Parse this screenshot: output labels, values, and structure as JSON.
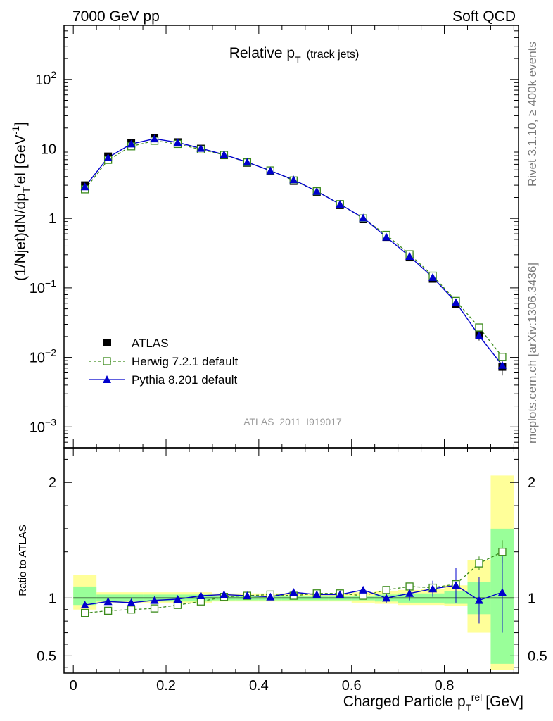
{
  "header": {
    "left": "7000 GeV pp",
    "right": "Soft QCD",
    "side_top": "Rivet 3.1.10, ≥ 400k events",
    "side_bottom": "mcplots.cern.ch [arXiv:1306.3436]",
    "watermark": "ATLAS_2011_I919017"
  },
  "colors": {
    "data": "#000000",
    "herwig": "#3a8a1a",
    "pythia": "#0000cc",
    "band_inner": "#99ff99",
    "band_outer": "#ffff99"
  },
  "chart_data": [
    {
      "type": "scatter",
      "title": "Relative p_T (track jets)",
      "title_main": "Relative p",
      "title_sub": "T",
      "title_suffix": "(track jets)",
      "xlabel": "",
      "ylabel": "(1/Njet)dN/dp_T^rel [GeV^-1]",
      "yscale": "log",
      "xlim": [
        -0.02,
        0.96
      ],
      "ylim": [
        0.0005,
        600
      ],
      "ytick_values": [
        0.001,
        0.01,
        0.1,
        1,
        10,
        100
      ],
      "ytick_labels": [
        {
          "base": "10",
          "exp": "−3"
        },
        {
          "base": "10",
          "exp": "−2"
        },
        {
          "base": "10",
          "exp": "−1"
        },
        {
          "base": "1",
          "exp": ""
        },
        {
          "base": "10",
          "exp": ""
        },
        {
          "base": "10",
          "exp": "2"
        }
      ],
      "legend_position": "lower-left",
      "x": [
        0.025,
        0.075,
        0.125,
        0.175,
        0.225,
        0.275,
        0.325,
        0.375,
        0.425,
        0.475,
        0.525,
        0.575,
        0.625,
        0.675,
        0.725,
        0.775,
        0.825,
        0.875,
        0.925
      ],
      "series": [
        {
          "name": "ATLAS",
          "values": [
            3.0,
            7.8,
            12.2,
            14.4,
            12.5,
            10.1,
            8.1,
            6.3,
            4.8,
            3.45,
            2.38,
            1.55,
            0.97,
            0.54,
            0.275,
            0.135,
            0.058,
            0.021,
            0.0073
          ],
          "errors": [
            0.15,
            0.3,
            0.4,
            0.5,
            0.4,
            0.3,
            0.25,
            0.2,
            0.15,
            0.1,
            0.07,
            0.05,
            0.03,
            0.02,
            0.01,
            0.006,
            0.003,
            0.0035,
            0.0018
          ]
        },
        {
          "name": "Herwig 7.2.1 default",
          "values": [
            2.62,
            6.95,
            10.9,
            13.1,
            11.8,
            9.8,
            8.2,
            6.4,
            4.9,
            3.52,
            2.46,
            1.61,
            1.0,
            0.58,
            0.305,
            0.15,
            0.065,
            0.027,
            0.0102
          ]
        },
        {
          "name": "Pythia 8.201 default",
          "values": [
            2.85,
            7.5,
            11.8,
            14.0,
            12.4,
            10.2,
            8.3,
            6.45,
            4.85,
            3.6,
            2.45,
            1.6,
            1.02,
            0.54,
            0.285,
            0.142,
            0.062,
            0.0205,
            0.0077
          ]
        }
      ]
    },
    {
      "type": "line",
      "title": "",
      "xlabel": "Charged Particle p_T^rel [GeV]",
      "xlabel_main": "Charged Particle p",
      "xlabel_sub": "T",
      "xlabel_sup": "rel",
      "xlabel_unit": "[GeV]",
      "ylabel": "Ratio to ATLAS",
      "xlim": [
        -0.02,
        0.96
      ],
      "ylim": [
        0.35,
        2.3
      ],
      "xtick_values": [
        0,
        0.2,
        0.4,
        0.6,
        0.8
      ],
      "xtick_labels": [
        "0",
        "0.2",
        "0.4",
        "0.6",
        "0.8"
      ],
      "ytick_values": [
        0.5,
        1,
        2
      ],
      "ytick_labels": [
        "0.5",
        "1",
        "2"
      ],
      "x": [
        0.025,
        0.075,
        0.125,
        0.175,
        0.225,
        0.275,
        0.325,
        0.375,
        0.425,
        0.475,
        0.525,
        0.575,
        0.625,
        0.675,
        0.725,
        0.775,
        0.825,
        0.875,
        0.925
      ],
      "bins": [
        [
          0.0,
          0.05
        ],
        [
          0.05,
          0.1
        ],
        [
          0.1,
          0.15
        ],
        [
          0.15,
          0.2
        ],
        [
          0.2,
          0.25
        ],
        [
          0.25,
          0.3
        ],
        [
          0.3,
          0.35
        ],
        [
          0.35,
          0.4
        ],
        [
          0.4,
          0.45
        ],
        [
          0.45,
          0.5
        ],
        [
          0.5,
          0.55
        ],
        [
          0.55,
          0.6
        ],
        [
          0.6,
          0.65
        ],
        [
          0.65,
          0.7
        ],
        [
          0.7,
          0.75
        ],
        [
          0.75,
          0.8
        ],
        [
          0.8,
          0.85
        ],
        [
          0.85,
          0.9
        ],
        [
          0.9,
          0.95
        ]
      ],
      "band_inner": [
        [
          0.94,
          1.1
        ],
        [
          0.97,
          1.03
        ],
        [
          0.97,
          1.03
        ],
        [
          0.97,
          1.03
        ],
        [
          0.97,
          1.03
        ],
        [
          0.97,
          1.03
        ],
        [
          0.98,
          1.02
        ],
        [
          0.98,
          1.02
        ],
        [
          0.98,
          1.02
        ],
        [
          0.98,
          1.02
        ],
        [
          0.98,
          1.02
        ],
        [
          0.98,
          1.02
        ],
        [
          0.98,
          1.02
        ],
        [
          0.97,
          1.03
        ],
        [
          0.96,
          1.04
        ],
        [
          0.96,
          1.04
        ],
        [
          0.95,
          1.06
        ],
        [
          0.86,
          1.14
        ],
        [
          0.43,
          1.6
        ]
      ],
      "band_outer": [
        [
          0.9,
          1.2
        ],
        [
          0.96,
          1.05
        ],
        [
          0.96,
          1.05
        ],
        [
          0.96,
          1.05
        ],
        [
          0.96,
          1.05
        ],
        [
          0.96,
          1.05
        ],
        [
          0.97,
          1.04
        ],
        [
          0.97,
          1.04
        ],
        [
          0.97,
          1.04
        ],
        [
          0.97,
          1.04
        ],
        [
          0.97,
          1.04
        ],
        [
          0.97,
          1.04
        ],
        [
          0.96,
          1.05
        ],
        [
          0.95,
          1.06
        ],
        [
          0.94,
          1.07
        ],
        [
          0.94,
          1.08
        ],
        [
          0.93,
          1.11
        ],
        [
          0.7,
          1.33
        ],
        [
          0.38,
          2.06
        ]
      ],
      "reference": 1,
      "series": [
        {
          "name": "Herwig 7.2.1 default",
          "values": [
            0.87,
            0.89,
            0.9,
            0.91,
            0.94,
            0.97,
            1.01,
            1.02,
            1.03,
            1.02,
            1.04,
            1.04,
            1.02,
            1.07,
            1.1,
            1.09,
            1.12,
            1.3,
            1.4
          ],
          "errors": [
            0.01,
            0.01,
            0.01,
            0.01,
            0.01,
            0.01,
            0.01,
            0.01,
            0.01,
            0.01,
            0.01,
            0.01,
            0.01,
            0.01,
            0.02,
            0.02,
            0.03,
            0.06,
            0.1
          ]
        },
        {
          "name": "Pythia 8.201 default",
          "values": [
            0.94,
            0.97,
            0.96,
            0.98,
            0.99,
            1.02,
            1.03,
            1.02,
            1.01,
            1.05,
            1.03,
            1.03,
            1.07,
            1.0,
            1.04,
            1.08,
            1.11,
            0.98,
            1.05
          ],
          "errors": [
            0.01,
            0.01,
            0.01,
            0.01,
            0.01,
            0.01,
            0.01,
            0.01,
            0.01,
            0.02,
            0.02,
            0.02,
            0.03,
            0.04,
            0.06,
            0.07,
            0.15,
            0.2,
            0.35
          ]
        }
      ]
    }
  ]
}
